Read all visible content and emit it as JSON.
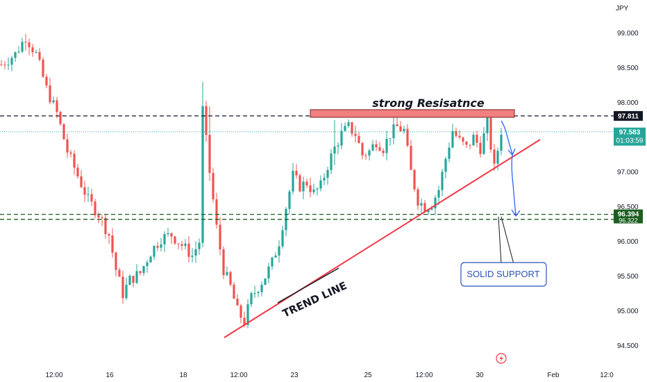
{
  "chart_data": {
    "type": "candlestick",
    "currency": "JPY",
    "y_range": [
      94.3,
      99.45
    ],
    "y_ticks": [
      "99.000",
      "98.500",
      "98.000",
      "97.500",
      "97.000",
      "96.500",
      "96.000",
      "95.500",
      "95.000",
      "94.500"
    ],
    "x_ticks": [
      "12:00",
      "16",
      "18",
      "12:00",
      "23",
      "25",
      "12:00",
      "30",
      "Feb",
      "12:0"
    ],
    "candle_count": 145,
    "levels": {
      "resistance": 97.811,
      "current": 97.583,
      "support_upper": 96.394,
      "support_lower": 96.322
    },
    "price_tags": {
      "resistance_label": "97.811",
      "current_label": "97.583",
      "countdown": "01:03:59",
      "support_upper_label": "96.394",
      "support_lower_label": "96.322"
    },
    "colors": {
      "up": "#26a69a",
      "down": "#ef5350",
      "trend_line": "#f23645",
      "resistance_zone": "#f28080",
      "support_box_border": "#2b52b7",
      "arrow": "#2962ff",
      "current_line": "#26a69a",
      "dark_tag": "#131722",
      "support_tag": "#1b5e20"
    },
    "annotations": {
      "resistance": "strong Resisatnce",
      "trend": "TREND LINE",
      "support": "SOLID SUPPORT"
    },
    "trend_line": {
      "start": [
        0,
        94.6
      ],
      "end": [
        134,
        97.55
      ]
    },
    "path": [
      [
        0,
        98.55
      ],
      [
        4,
        98.7
      ],
      [
        7,
        98.95
      ],
      [
        10,
        98.7
      ],
      [
        13,
        98.2
      ],
      [
        16,
        97.85
      ],
      [
        19,
        97.3
      ],
      [
        22,
        96.95
      ],
      [
        25,
        96.6
      ],
      [
        28,
        96.4
      ],
      [
        31,
        96.1
      ],
      [
        33,
        95.6
      ],
      [
        35,
        95.25
      ],
      [
        37,
        95.45
      ],
      [
        40,
        95.55
      ],
      [
        43,
        95.85
      ],
      [
        46,
        96.05
      ],
      [
        49,
        96.1
      ],
      [
        52,
        95.95
      ],
      [
        55,
        95.8
      ],
      [
        57,
        96.0
      ],
      [
        58,
        97.9
      ],
      [
        60,
        97.0
      ],
      [
        62,
        96.2
      ],
      [
        64,
        95.6
      ],
      [
        66,
        95.35
      ],
      [
        68,
        95.0
      ],
      [
        70,
        94.85
      ],
      [
        72,
        95.2
      ],
      [
        74,
        95.35
      ],
      [
        76,
        95.5
      ],
      [
        78,
        95.7
      ],
      [
        80,
        96.0
      ],
      [
        82,
        96.5
      ],
      [
        84,
        96.95
      ],
      [
        86,
        96.8
      ],
      [
        88,
        96.85
      ],
      [
        90,
        96.7
      ],
      [
        92,
        96.8
      ],
      [
        94,
        97.1
      ],
      [
        96,
        97.35
      ],
      [
        98,
        97.55
      ],
      [
        100,
        97.65
      ],
      [
        102,
        97.55
      ],
      [
        104,
        97.25
      ],
      [
        106,
        97.3
      ],
      [
        108,
        97.45
      ],
      [
        110,
        97.35
      ],
      [
        112,
        97.55
      ],
      [
        114,
        97.65
      ],
      [
        116,
        97.6
      ],
      [
        118,
        97.0
      ],
      [
        120,
        96.6
      ],
      [
        122,
        96.5
      ],
      [
        124,
        96.55
      ],
      [
        126,
        96.75
      ],
      [
        128,
        97.2
      ],
      [
        130,
        97.6
      ],
      [
        132,
        97.45
      ],
      [
        134,
        97.35
      ],
      [
        136,
        97.5
      ],
      [
        138,
        97.35
      ],
      [
        140,
        97.7
      ],
      [
        142,
        97.05
      ],
      [
        144,
        97.6
      ]
    ],
    "spikes": [
      [
        58,
        98.3,
        97.1
      ],
      [
        60,
        97.95,
        96.95
      ],
      [
        96,
        97.75,
        97.1
      ]
    ]
  }
}
